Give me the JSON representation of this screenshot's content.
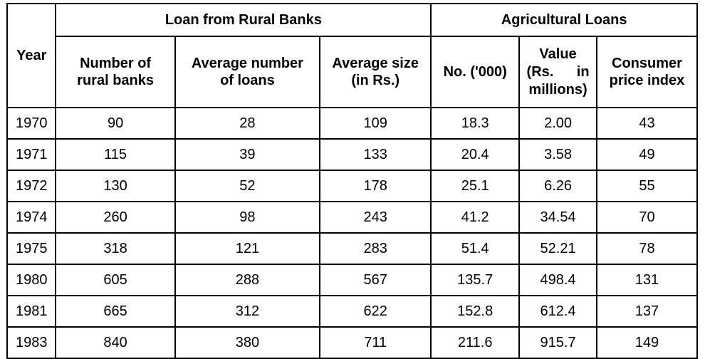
{
  "table": {
    "year_header": "Year",
    "group_headers": {
      "rural_banks": "Loan from Rural Banks",
      "agricultural": "Agricultural Loans"
    },
    "column_headers": {
      "num_rural_banks": [
        "Number of",
        "rural banks"
      ],
      "avg_num_loans": [
        "Average number",
        "of loans"
      ],
      "avg_size": [
        "Average size",
        "(in Rs.)"
      ],
      "ag_no": "No. ('000)",
      "ag_value": [
        "Value",
        "(Rs. in",
        "millions)"
      ],
      "cpi": [
        "Consumer",
        "price index"
      ]
    },
    "rows": [
      {
        "year": "1970",
        "num_rural_banks": "90",
        "avg_num_loans": "28",
        "avg_size": "109",
        "ag_no": "18.3",
        "ag_value": "2.00",
        "cpi": "43"
      },
      {
        "year": "1971",
        "num_rural_banks": "115",
        "avg_num_loans": "39",
        "avg_size": "133",
        "ag_no": "20.4",
        "ag_value": "3.58",
        "cpi": "49"
      },
      {
        "year": "1972",
        "num_rural_banks": "130",
        "avg_num_loans": "52",
        "avg_size": "178",
        "ag_no": "25.1",
        "ag_value": "6.26",
        "cpi": "55"
      },
      {
        "year": "1974",
        "num_rural_banks": "260",
        "avg_num_loans": "98",
        "avg_size": "243",
        "ag_no": "41.2",
        "ag_value": "34.54",
        "cpi": "70"
      },
      {
        "year": "1975",
        "num_rural_banks": "318",
        "avg_num_loans": "121",
        "avg_size": "283",
        "ag_no": "51.4",
        "ag_value": "52.21",
        "cpi": "78"
      },
      {
        "year": "1980",
        "num_rural_banks": "605",
        "avg_num_loans": "288",
        "avg_size": "567",
        "ag_no": "135.7",
        "ag_value": "498.4",
        "cpi": "131"
      },
      {
        "year": "1981",
        "num_rural_banks": "665",
        "avg_num_loans": "312",
        "avg_size": "622",
        "ag_no": "152.8",
        "ag_value": "612.4",
        "cpi": "137"
      },
      {
        "year": "1983",
        "num_rural_banks": "840",
        "avg_num_loans": "380",
        "avg_size": "711",
        "ag_no": "211.6",
        "ag_value": "915.7",
        "cpi": "149"
      }
    ]
  }
}
